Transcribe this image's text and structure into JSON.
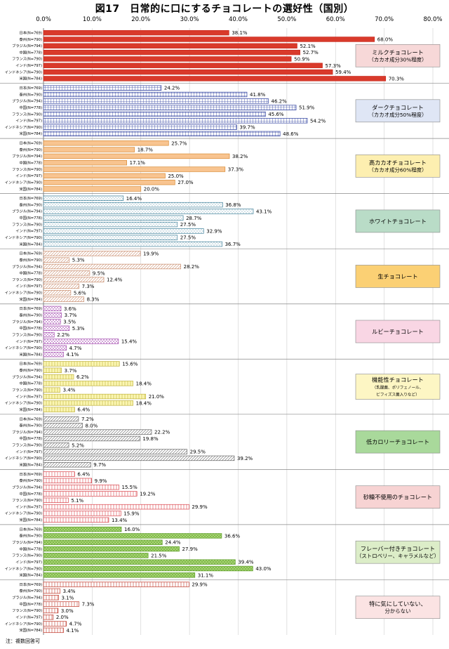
{
  "page": {
    "title": "図17　日常的に口にするチョコレートの選好性（国別）",
    "note": "注：複数回答可"
  },
  "chart_data": {
    "type": "bar",
    "orientation": "horizontal",
    "title": "図17　日常的に口にするチョコレートの選好性（国別）",
    "xlim": [
      0,
      80
    ],
    "ticks": [
      "0.0%",
      "10.0%",
      "20.0%",
      "30.0%",
      "40.0%",
      "50.0%",
      "60.0%",
      "70.0%",
      "80.0%"
    ],
    "categories": [
      "日本(N=769)",
      "泰州(N=790)",
      "ブラジル(N=794)",
      "中国(N=778)",
      "フランス(N=790)",
      "インド(N=797)",
      "インドネシア(N=790)",
      "米国(N=784)"
    ],
    "series": [
      {
        "name": "ミルクチョコレート",
        "label_lines": [
          "ミルクチョコレート",
          "（カカオ成分30%程度）"
        ],
        "color": "#c8281c",
        "fill": "#d93a2b",
        "pattern": "solid",
        "box_color": "#f7d8d8",
        "values": [
          38.1,
          68.0,
          52.1,
          52.7,
          50.9,
          57.3,
          59.4,
          70.3
        ],
        "value_labels": [
          "38.1%",
          "68.0%",
          "52.1%",
          "52.7%",
          "50.9%",
          "57.3%",
          "59.4%",
          "70.3%"
        ]
      },
      {
        "name": "ダークチョコレート",
        "label_lines": [
          "ダークチョコレート",
          "（カカオ成分50%程度）"
        ],
        "color": "#2c3e9e",
        "fill": "#ffffff",
        "pattern": "grid",
        "box_color": "#dfe6f5",
        "values": [
          24.2,
          41.8,
          46.2,
          51.9,
          45.6,
          54.2,
          39.7,
          48.6
        ],
        "value_labels": [
          "24.2%",
          "41.8%",
          "46.2%",
          "51.9%",
          "45.6%",
          "54.2%",
          "39.7%",
          "48.6%"
        ]
      },
      {
        "name": "高カカオチョコレート",
        "label_lines": [
          "高カカオチョコレート",
          "（カカオ成分60%程度）"
        ],
        "color": "#d88a34",
        "fill": "#f8c490",
        "pattern": "solid",
        "box_color": "#fdefb0",
        "values": [
          25.7,
          18.7,
          38.2,
          17.1,
          37.3,
          25.0,
          27.0,
          20.0
        ],
        "value_labels": [
          "25.7%",
          "18.7%",
          "38.2%",
          "17.1%",
          "37.3%",
          "25.0%",
          "27.0%",
          "20.0%"
        ]
      },
      {
        "name": "ホワイトチョコレート",
        "label_lines": [
          "ホワイトチョコレート"
        ],
        "color": "#3d7f99",
        "fill": "#ffffff",
        "pattern": "dots",
        "box_color": "#b9dcc7",
        "values": [
          16.4,
          36.8,
          43.1,
          28.7,
          27.5,
          32.9,
          27.5,
          36.7
        ],
        "value_labels": [
          "16.4%",
          "36.8%",
          "43.1%",
          "28.7%",
          "27.5%",
          "32.9%",
          "27.5%",
          "36.7%"
        ]
      },
      {
        "name": "生チョコレート",
        "label_lines": [
          "生チョコレート"
        ],
        "color": "#c98b6b",
        "fill": "#ffffff",
        "pattern": "diag",
        "box_color": "#fbd074",
        "values": [
          19.9,
          5.3,
          28.2,
          9.5,
          12.4,
          7.3,
          5.6,
          8.3
        ],
        "value_labels": [
          "19.9%",
          "5.3%",
          "28.2%",
          "9.5%",
          "12.4%",
          "7.3%",
          "5.6%",
          "8.3%"
        ]
      },
      {
        "name": "ルビーチョコレート",
        "label_lines": [
          "ルビーチョコレート"
        ],
        "color": "#a44bb0",
        "fill": "#ffffff",
        "pattern": "cross",
        "box_color": "#f9d6e4",
        "values": [
          3.6,
          3.7,
          3.5,
          5.3,
          2.2,
          15.4,
          4.7,
          4.1
        ],
        "value_labels": [
          "3.6%",
          "3.7%",
          "3.5%",
          "5.3%",
          "2.2%",
          "15.4%",
          "4.7%",
          "4.1%"
        ]
      },
      {
        "name": "機能性チョコレート",
        "label_lines": [
          "機能性チョコレート",
          "（乳酸菌、ポリフェノール、",
          "ビフィズス菌入りなど）"
        ],
        "color": "#c0b23a",
        "fill": "#fbf6b3",
        "pattern": "vert",
        "box_color": "#fdf6c4",
        "values": [
          15.6,
          3.7,
          6.2,
          18.4,
          3.4,
          21.0,
          18.4,
          6.4
        ],
        "value_labels": [
          "15.6%",
          "3.7%",
          "6.2%",
          "18.4%",
          "3.4%",
          "21.0%",
          "18.4%",
          "6.4%"
        ]
      },
      {
        "name": "低カロリーチョコレート",
        "label_lines": [
          "低カロリーチョコレート"
        ],
        "color": "#666666",
        "fill": "#ffffff",
        "pattern": "diag",
        "box_color": "#a9d99b",
        "values": [
          7.2,
          8.0,
          22.2,
          19.8,
          5.2,
          29.5,
          39.2,
          9.7
        ],
        "value_labels": [
          "7.2%",
          "8.0%",
          "22.2%",
          "19.8%",
          "5.2%",
          "29.5%",
          "39.2%",
          "9.7%"
        ]
      },
      {
        "name": "砂糖不使用のチョコレート",
        "label_lines": [
          "砂糖不使用のチョコレート"
        ],
        "color": "#d9434a",
        "fill": "#ffffff",
        "pattern": "vert",
        "box_color": "#f7d3d3",
        "values": [
          6.4,
          9.9,
          15.5,
          19.2,
          5.1,
          29.9,
          15.9,
          13.4
        ],
        "value_labels": [
          "6.4%",
          "9.9%",
          "15.5%",
          "19.2%",
          "5.1%",
          "29.9%",
          "15.9%",
          "13.4%"
        ]
      },
      {
        "name": "フレーバー付きチョコレート",
        "label_lines": [
          "フレーバー付きチョコレート",
          "（ストロベリー、キャラメルなど）"
        ],
        "color": "#5e9e2a",
        "fill": "#a6d472",
        "pattern": "cross",
        "box_color": "#dcedc8",
        "values": [
          16.0,
          36.6,
          24.4,
          27.9,
          21.5,
          39.4,
          43.0,
          31.1
        ],
        "value_labels": [
          "16.0%",
          "36.6%",
          "24.4%",
          "27.9%",
          "21.5%",
          "39.4%",
          "43.0%",
          "31.1%"
        ]
      },
      {
        "name": "特に気にしていない、分からない",
        "label_lines": [
          "特に気にしていない、",
          "分からない"
        ],
        "color": "#c0392b",
        "fill": "#ffffff",
        "pattern": "vert",
        "box_color": "#fbe3e3",
        "values": [
          29.9,
          3.4,
          3.1,
          7.3,
          3.0,
          2.0,
          4.7,
          4.1
        ],
        "value_labels": [
          "29.9%",
          "3.4%",
          "3.1%",
          "7.3%",
          "3.0%",
          "2.0%",
          "4.7%",
          "4.1%"
        ]
      }
    ]
  }
}
